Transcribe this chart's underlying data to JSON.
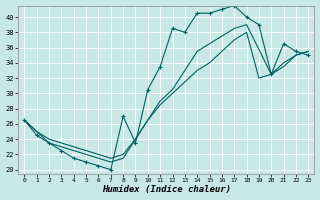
{
  "xlabel": "Humidex (Indice chaleur)",
  "xlim": [
    -0.5,
    23.5
  ],
  "ylim": [
    19.5,
    41.5
  ],
  "xticks": [
    0,
    1,
    2,
    3,
    4,
    5,
    6,
    7,
    8,
    9,
    10,
    11,
    12,
    13,
    14,
    15,
    16,
    17,
    18,
    19,
    20,
    21,
    22,
    23
  ],
  "yticks": [
    20,
    22,
    24,
    26,
    28,
    30,
    32,
    34,
    36,
    38,
    40
  ],
  "bg_color": "#c8e8e8",
  "grid_color": "#aaaaaa",
  "line_color": "#006060",
  "line1_x": [
    0,
    1,
    2,
    3,
    4,
    5,
    6,
    7,
    8,
    9,
    10,
    11,
    12,
    13,
    14,
    15,
    16,
    17,
    18,
    19,
    20,
    21,
    22,
    23
  ],
  "line1_y": [
    26.5,
    24.5,
    23.5,
    22.5,
    21.5,
    21.0,
    20.5,
    20.0,
    27.0,
    23.5,
    30.5,
    33.5,
    38.5,
    38.0,
    40.5,
    40.5,
    41.0,
    41.5,
    40.0,
    39.0,
    32.5,
    36.5,
    35.5,
    35.0
  ],
  "line2_x": [
    0,
    2,
    3,
    4,
    5,
    6,
    7,
    8,
    9,
    10,
    11,
    12,
    13,
    14,
    15,
    16,
    17,
    18,
    20,
    21,
    22,
    23
  ],
  "line2_y": [
    26.5,
    23.5,
    23.0,
    22.5,
    22.0,
    21.5,
    21.0,
    21.5,
    24.0,
    26.5,
    29.0,
    30.5,
    33.0,
    35.5,
    36.5,
    37.5,
    38.5,
    39.0,
    32.5,
    33.5,
    35.0,
    35.5
  ],
  "line3_x": [
    0,
    1,
    2,
    3,
    4,
    5,
    6,
    7,
    8,
    9,
    10,
    11,
    12,
    13,
    14,
    15,
    16,
    17,
    18,
    19,
    20,
    21,
    22,
    23
  ],
  "line3_y": [
    26.5,
    25.0,
    24.0,
    23.5,
    23.0,
    22.5,
    22.0,
    21.5,
    22.0,
    24.0,
    26.5,
    28.5,
    30.0,
    31.5,
    33.0,
    34.0,
    35.5,
    37.0,
    38.0,
    32.0,
    32.5,
    34.0,
    35.0,
    35.5
  ]
}
